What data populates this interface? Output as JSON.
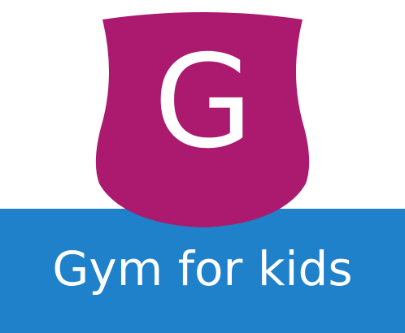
{
  "logo": {
    "monogram": "G",
    "tagline": "Gym for kids",
    "shield_color": "#ab1a6e",
    "banner_color": "#1f81c9",
    "text_color": "#ffffff"
  }
}
